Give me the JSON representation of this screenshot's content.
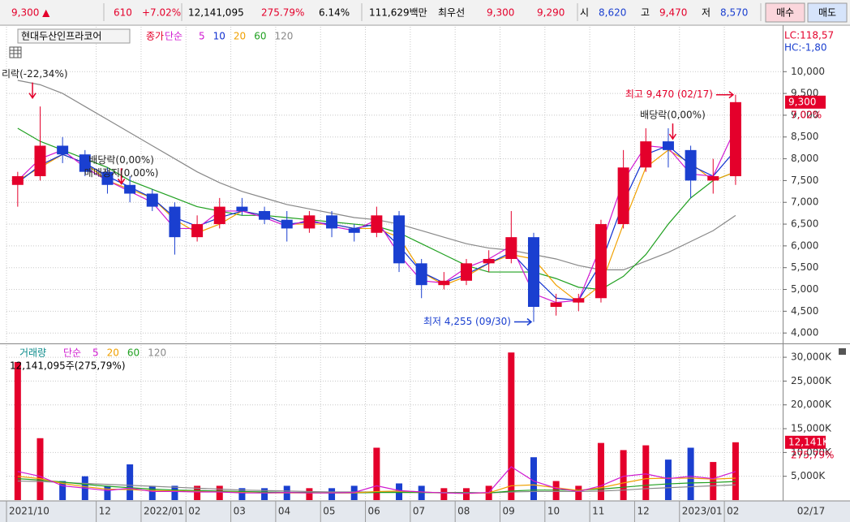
{
  "header": {
    "items": [
      "9,300 ▲",
      "610",
      "+7.02%",
      "12,141,095",
      "275.79%",
      "6.14%",
      "111,629백만",
      "최우선",
      "9,300",
      "9,290",
      "시",
      "8,620",
      "고",
      "9,470",
      "저",
      "8,570"
    ],
    "buttons": [
      "매수",
      "매도"
    ]
  },
  "chart_data": [
    {
      "type": "candlestick",
      "title": "현대두산인프라코어",
      "legend_prefix": [
        "종가",
        "단순"
      ],
      "x": [
        0.25,
        0.75,
        1.25,
        1.75,
        2.25,
        2.75,
        3.25,
        3.75,
        4.25,
        4.75,
        5.25,
        5.75,
        6.25,
        6.75,
        7.25,
        7.75,
        8.25,
        8.75,
        9.25,
        9.75,
        10.25,
        10.75,
        11.25,
        11.75,
        12.25,
        12.75,
        13.25,
        13.75,
        14.25,
        14.75,
        15.25,
        15.75,
        16.25
      ],
      "open": [
        7400,
        7600,
        8300,
        8100,
        7700,
        7400,
        7200,
        6900,
        6200,
        6500,
        6900,
        6800,
        6600,
        6400,
        6700,
        6400,
        6300,
        6700,
        5600,
        5100,
        5200,
        5600,
        5700,
        6200,
        4600,
        4700,
        4800,
        6500,
        7800,
        8400,
        8200,
        7500,
        7600
      ],
      "high": [
        7700,
        9200,
        8500,
        8200,
        7800,
        7600,
        7300,
        7000,
        6700,
        7100,
        7100,
        6900,
        6800,
        6800,
        6800,
        6500,
        6900,
        6800,
        5700,
        5400,
        5700,
        5900,
        6800,
        6300,
        4900,
        4900,
        6600,
        8200,
        8700,
        8700,
        8300,
        8000,
        9470
      ],
      "low": [
        6900,
        7500,
        7900,
        7600,
        7200,
        7000,
        6800,
        5800,
        6100,
        6400,
        6700,
        6500,
        6100,
        6300,
        6200,
        6100,
        6200,
        5400,
        4800,
        5000,
        5100,
        5400,
        5600,
        4255,
        4400,
        4500,
        4700,
        6400,
        7700,
        7800,
        7100,
        7200,
        7400
      ],
      "close": [
        7600,
        8300,
        8100,
        7700,
        7400,
        7200,
        6900,
        6200,
        6500,
        6900,
        6800,
        6600,
        6400,
        6700,
        6400,
        6300,
        6700,
        5600,
        5100,
        5200,
        5600,
        5700,
        6200,
        4600,
        4700,
        4800,
        6500,
        7800,
        8400,
        8200,
        7500,
        7600,
        9300
      ],
      "up_color": "#e4002b",
      "down_color": "#1a3fd0",
      "series": [
        {
          "name": "5",
          "color": "#d018d0",
          "values": [
            7500,
            8000,
            8200,
            7800,
            7500,
            7250,
            7000,
            6400,
            6400,
            6800,
            6800,
            6650,
            6450,
            6600,
            6450,
            6350,
            6600,
            5800,
            5200,
            5150,
            5500,
            5700,
            6000,
            4900,
            4700,
            4750,
            6000,
            7500,
            8300,
            8250,
            7650,
            7600,
            8700
          ]
        },
        {
          "name": "10",
          "color": "#1030d0",
          "values": [
            7450,
            7850,
            8100,
            7900,
            7600,
            7350,
            7100,
            6650,
            6450,
            6650,
            6800,
            6700,
            6500,
            6550,
            6500,
            6400,
            6500,
            6000,
            5400,
            5150,
            5350,
            5600,
            5850,
            5300,
            4800,
            4750,
            5600,
            7000,
            8100,
            8300,
            7850,
            7600,
            8200
          ]
        },
        {
          "name": "20",
          "color": "#f0a000",
          "values": [
            7500,
            7800,
            8100,
            7900,
            7500,
            7300,
            7100,
            6600,
            6300,
            6500,
            6800,
            6700,
            6500,
            6500,
            6500,
            6400,
            6400,
            6200,
            5400,
            5100,
            5300,
            5600,
            5800,
            5700,
            5100,
            4700,
            5100,
            6500,
            7800,
            8200,
            7900,
            7500,
            7700
          ]
        },
        {
          "name": "60",
          "color": "#20a020",
          "values": [
            8700,
            8400,
            8200,
            8000,
            7800,
            7500,
            7300,
            7100,
            6900,
            6800,
            6700,
            6700,
            6650,
            6600,
            6550,
            6500,
            6450,
            6300,
            6050,
            5800,
            5550,
            5400,
            5400,
            5400,
            5250,
            5050,
            5000,
            5300,
            5800,
            6500,
            7100,
            7500,
            7700
          ]
        },
        {
          "name": "120",
          "color": "#888888",
          "values": [
            9800,
            9700,
            9500,
            9200,
            8900,
            8600,
            8300,
            8000,
            7700,
            7450,
            7250,
            7100,
            6950,
            6850,
            6750,
            6650,
            6600,
            6500,
            6350,
            6200,
            6050,
            5950,
            5900,
            5800,
            5700,
            5550,
            5450,
            5450,
            5650,
            5850,
            6100,
            6350,
            6700
          ]
        }
      ],
      "xlim": [
        0,
        17.3
      ],
      "xticks": [
        {
          "value": 0,
          "label": "2021/10"
        },
        {
          "value": 2,
          "label": "12"
        },
        {
          "value": 3,
          "label": "2022/01"
        },
        {
          "value": 4,
          "label": "02"
        },
        {
          "value": 5,
          "label": "03"
        },
        {
          "value": 6,
          "label": "04"
        },
        {
          "value": 7,
          "label": "05"
        },
        {
          "value": 8,
          "label": "06"
        },
        {
          "value": 9,
          "label": "07"
        },
        {
          "value": 10,
          "label": "08"
        },
        {
          "value": 11,
          "label": "09"
        },
        {
          "value": 12,
          "label": "10"
        },
        {
          "value": 13,
          "label": "11"
        },
        {
          "value": 14,
          "label": "12"
        },
        {
          "value": 15,
          "label": "2023/01"
        },
        {
          "value": 16,
          "label": "02"
        }
      ],
      "end_label": "02/17",
      "ylim": [
        3780,
        11030
      ],
      "yticks": [
        {
          "value": 4000,
          "label": "4,000"
        },
        {
          "value": 4500,
          "label": "4,500"
        },
        {
          "value": 5000,
          "label": "5,000"
        },
        {
          "value": 5500,
          "label": "5,500"
        },
        {
          "value": 6000,
          "label": "6,000"
        },
        {
          "value": 6500,
          "label": "6,500"
        },
        {
          "value": 7000,
          "label": "7,000"
        },
        {
          "value": 7500,
          "label": "7,500"
        },
        {
          "value": 8000,
          "label": "8,000"
        },
        {
          "value": 8500,
          "label": "8,500"
        },
        {
          "value": 9000,
          "label": "9,000"
        },
        {
          "value": 9500,
          "label": "9,500"
        },
        {
          "value": 10000,
          "label": "10,000"
        }
      ],
      "grid": true,
      "indicators": [
        {
          "text": "LC:118,57",
          "color": "#e4002b"
        },
        {
          "text": "HC:-1,80",
          "color": "#1a3fd0"
        }
      ],
      "current": {
        "value": 9300,
        "label": "9,300",
        "change": "7,02%"
      },
      "annotations": [
        {
          "text": "리락(-22,34%)",
          "x": 0.58,
          "y": 9340,
          "style": "down",
          "color": "#e4002b"
        },
        {
          "text": "배당락(0,00%)",
          "x": 2.56,
          "y": 7370,
          "style": "down",
          "color": "#e4002b"
        },
        {
          "text": "매매정지(0,00%)",
          "x": 2.56,
          "y": 7370,
          "style": "down",
          "color": "#e4002b"
        },
        {
          "text": "배당락(0,00%)",
          "x": 14.85,
          "y": 8400,
          "style": "down",
          "color": "#e4002b"
        },
        {
          "text": "최고 9,470 (02/17)",
          "x": 16.25,
          "y": 9470,
          "style": "right",
          "color": "#e4002b"
        },
        {
          "text": "최저 4,255 (09/30)",
          "x": 11.75,
          "y": 4255,
          "style": "right",
          "color": "#1a3fd0"
        }
      ]
    },
    {
      "type": "bar",
      "title": "거래량",
      "legend_prefix": "단순",
      "subtitle": "12,141,095주(275,79%)",
      "x": [
        0.25,
        0.75,
        1.25,
        1.75,
        2.25,
        2.75,
        3.25,
        3.75,
        4.25,
        4.75,
        5.25,
        5.75,
        6.25,
        6.75,
        7.25,
        7.75,
        8.25,
        8.75,
        9.25,
        9.75,
        10.25,
        10.75,
        11.25,
        11.75,
        12.25,
        12.75,
        13.25,
        13.75,
        14.25,
        14.75,
        15.25,
        15.75,
        16.25
      ],
      "values": [
        29000,
        13000,
        4000,
        5000,
        3000,
        7500,
        3000,
        3000,
        3000,
        3000,
        2500,
        2500,
        3000,
        2500,
        2500,
        3000,
        11000,
        3500,
        3000,
        2500,
        2500,
        3000,
        31000,
        9000,
        4000,
        3000,
        12000,
        10500,
        11500,
        8500,
        11000,
        8000,
        12141
      ],
      "series": [
        {
          "name": "5",
          "color": "#d018d0",
          "values": [
            6000,
            5000,
            3000,
            2500,
            2000,
            2500,
            1800,
            1800,
            1700,
            1700,
            1500,
            1500,
            1600,
            1500,
            1500,
            1600,
            3000,
            2000,
            1700,
            1500,
            1400,
            1600,
            7000,
            4000,
            2500,
            1800,
            3000,
            5000,
            5500,
            4500,
            5000,
            4500,
            6000
          ]
        },
        {
          "name": "20",
          "color": "#f0a000",
          "values": [
            5000,
            4500,
            3500,
            2800,
            2300,
            2200,
            2000,
            1900,
            1800,
            1700,
            1600,
            1500,
            1500,
            1500,
            1500,
            1500,
            1800,
            1900,
            1700,
            1500,
            1400,
            1500,
            3000,
            3200,
            2600,
            2000,
            2600,
            3600,
            4500,
            4600,
            4600,
            4400,
            4600
          ]
        },
        {
          "name": "60",
          "color": "#20a020",
          "values": [
            4500,
            4200,
            3800,
            3300,
            2900,
            2600,
            2300,
            2100,
            2000,
            1900,
            1800,
            1700,
            1600,
            1600,
            1500,
            1500,
            1600,
            1600,
            1600,
            1500,
            1500,
            1500,
            1900,
            2100,
            2100,
            2100,
            2300,
            2700,
            3100,
            3400,
            3600,
            3700,
            3900
          ]
        },
        {
          "name": "120",
          "color": "#888888",
          "values": [
            4000,
            3900,
            3700,
            3500,
            3300,
            3100,
            2900,
            2700,
            2500,
            2300,
            2100,
            2000,
            1900,
            1800,
            1700,
            1700,
            1700,
            1700,
            1600,
            1600,
            1600,
            1500,
            1700,
            1800,
            1800,
            1800,
            1900,
            2100,
            2400,
            2600,
            2800,
            3000,
            3200
          ]
        }
      ],
      "xlim": [
        0,
        17.3
      ],
      "ylim": [
        0,
        32570
      ],
      "yticks": [
        {
          "value": 5000,
          "label": "5,000K"
        },
        {
          "value": 10000,
          "label": "10,000K"
        },
        {
          "value": 15000,
          "label": "15,000K"
        },
        {
          "value": 20000,
          "label": "20,000K"
        },
        {
          "value": 25000,
          "label": "25,000K"
        },
        {
          "value": 30000,
          "label": "30,000K"
        }
      ],
      "grid": true,
      "current": {
        "value": 12141,
        "label": "12,141K",
        "change": "275,79%"
      }
    }
  ]
}
